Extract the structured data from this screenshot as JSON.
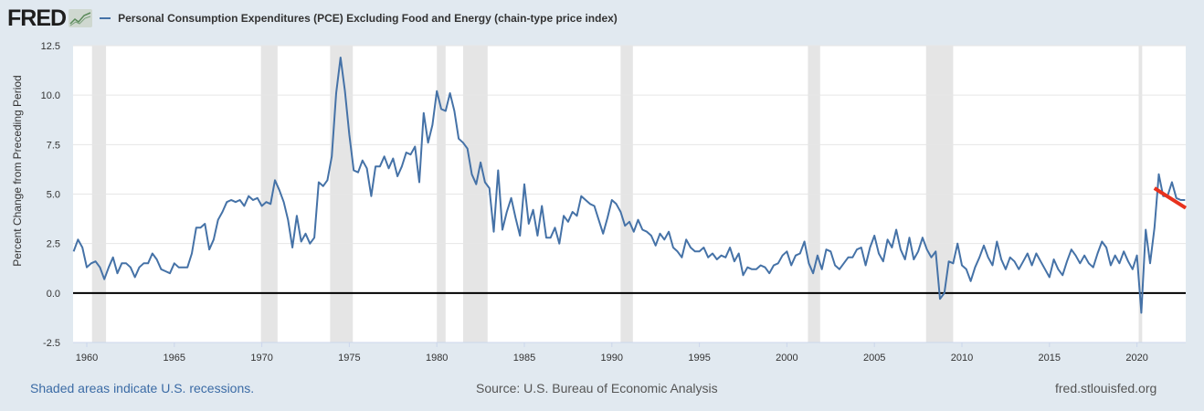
{
  "header": {
    "logo": "FRED",
    "logo_icon": "chart-line-icon",
    "series_title": "Personal Consumption Expenditures (PCE) Excluding Food and Energy (chain-type price index)"
  },
  "footer": {
    "recession_note": "Shaded areas indicate U.S. recessions.",
    "source": "Source: U.S. Bureau of Economic Analysis",
    "site": "fred.stlouisfed.org"
  },
  "colors": {
    "series": "#4572a7",
    "annotation": "#e8321e",
    "recession": "#e5e5e5",
    "background": "#e1e9f0"
  },
  "chart_data": {
    "type": "line",
    "title": "Personal Consumption Expenditures (PCE) Excluding Food and Energy (chain-type price index)",
    "xlabel": "",
    "ylabel": "Percent Change from Preceding Period",
    "ylim": [
      -2.5,
      12.5
    ],
    "xlim": [
      1959.25,
      2022.9
    ],
    "yticks": [
      "12.5",
      "10.0",
      "7.5",
      "5.0",
      "2.5",
      "0.0",
      "-2.5"
    ],
    "xticks": [
      "1960",
      "1965",
      "1970",
      "1975",
      "1980",
      "1985",
      "1990",
      "1995",
      "2000",
      "2005",
      "2010",
      "2015",
      "2020"
    ],
    "grid": true,
    "legend": "top-left",
    "recessions": [
      [
        1960.3,
        1961.1
      ],
      [
        1969.95,
        1970.9
      ],
      [
        1973.9,
        1975.2
      ],
      [
        1980.0,
        1980.5
      ],
      [
        1981.5,
        1982.9
      ],
      [
        1990.5,
        1991.2
      ],
      [
        2001.2,
        2001.9
      ],
      [
        2007.95,
        2009.5
      ],
      [
        2020.1,
        2020.3
      ]
    ],
    "series": [
      {
        "name": "PCE Excluding Food and Energy",
        "start": 1959.25,
        "step": 0.25,
        "values": [
          2.1,
          2.7,
          2.3,
          1.3,
          1.5,
          1.6,
          1.3,
          0.7,
          1.3,
          1.8,
          1.0,
          1.5,
          1.5,
          1.3,
          0.8,
          1.3,
          1.5,
          1.5,
          2.0,
          1.7,
          1.2,
          1.1,
          1.0,
          1.5,
          1.3,
          1.3,
          1.3,
          2.0,
          3.3,
          3.3,
          3.5,
          2.2,
          2.7,
          3.7,
          4.1,
          4.6,
          4.7,
          4.6,
          4.7,
          4.4,
          4.9,
          4.7,
          4.8,
          4.4,
          4.6,
          4.5,
          5.7,
          5.2,
          4.6,
          3.7,
          2.3,
          3.9,
          2.6,
          3.0,
          2.5,
          2.8,
          5.6,
          5.4,
          5.7,
          6.9,
          10.1,
          11.9,
          10.2,
          8.0,
          6.2,
          6.1,
          6.7,
          6.3,
          4.9,
          6.4,
          6.4,
          6.9,
          6.3,
          6.8,
          5.9,
          6.4,
          7.1,
          7.0,
          7.4,
          5.6,
          9.1,
          7.6,
          8.5,
          10.2,
          9.3,
          9.2,
          10.1,
          9.2,
          7.8,
          7.6,
          7.3,
          6.0,
          5.5,
          6.6,
          5.6,
          5.3,
          3.1,
          6.2,
          3.2,
          4.1,
          4.8,
          3.8,
          2.9,
          5.5,
          3.5,
          4.2,
          2.9,
          4.4,
          2.8,
          2.8,
          3.3,
          2.5,
          3.9,
          3.6,
          4.1,
          3.9,
          4.9,
          4.7,
          4.5,
          4.4,
          3.7,
          3.0,
          3.8,
          4.7,
          4.5,
          4.1,
          3.4,
          3.6,
          3.1,
          3.7,
          3.2,
          3.1,
          2.9,
          2.4,
          3.0,
          2.7,
          3.1,
          2.3,
          2.1,
          1.8,
          2.7,
          2.3,
          2.1,
          2.1,
          2.3,
          1.8,
          2.0,
          1.7,
          1.9,
          1.8,
          2.3,
          1.6,
          2.0,
          0.9,
          1.3,
          1.2,
          1.2,
          1.4,
          1.3,
          1.0,
          1.4,
          1.5,
          1.9,
          2.1,
          1.4,
          1.9,
          2.0,
          2.6,
          1.5,
          1.0,
          1.9,
          1.2,
          2.2,
          2.1,
          1.4,
          1.2,
          1.5,
          1.8,
          1.8,
          2.2,
          2.3,
          1.4,
          2.3,
          2.9,
          2.0,
          1.6,
          2.7,
          2.3,
          3.2,
          2.2,
          1.7,
          2.8,
          1.7,
          2.1,
          2.8,
          2.2,
          1.8,
          2.1,
          -0.3,
          0.0,
          1.6,
          1.5,
          2.5,
          1.4,
          1.2,
          0.6,
          1.3,
          1.8,
          2.4,
          1.8,
          1.4,
          2.6,
          1.7,
          1.2,
          1.8,
          1.6,
          1.2,
          1.6,
          2.0,
          1.4,
          2.0,
          1.6,
          1.2,
          0.8,
          1.7,
          1.2,
          0.9,
          1.6,
          2.2,
          1.9,
          1.5,
          1.9,
          1.5,
          1.3,
          2.0,
          2.6,
          2.3,
          1.4,
          1.9,
          1.5,
          2.1,
          1.6,
          1.2,
          1.9,
          -1.0,
          3.2,
          1.5,
          3.3,
          6.0,
          4.9,
          4.9,
          5.6,
          4.8,
          4.7,
          4.7
        ]
      }
    ],
    "annotations": [
      {
        "type": "trend-line",
        "from": [
          2021.0,
          5.3
        ],
        "to": [
          2022.9,
          4.3
        ]
      }
    ]
  }
}
